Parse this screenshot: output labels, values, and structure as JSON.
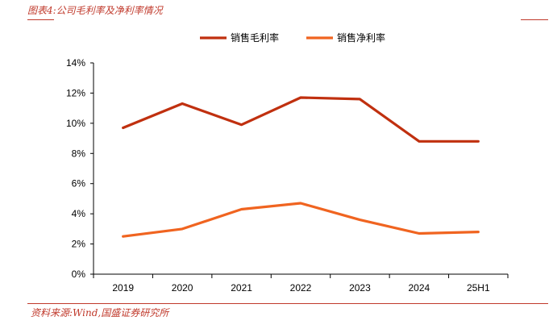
{
  "header": {
    "title": "图表4:公司毛利率及净利率情况"
  },
  "footer": {
    "source": "资料来源:Wind,国盛证券研究所"
  },
  "chart_data": {
    "type": "line",
    "title": "",
    "xlabel": "",
    "ylabel": "",
    "categories": [
      "2019",
      "2020",
      "2021",
      "2022",
      "2023",
      "2024",
      "25H1"
    ],
    "y_ticks": [
      "0%",
      "2%",
      "4%",
      "6%",
      "8%",
      "10%",
      "12%",
      "14%"
    ],
    "ylim": [
      0,
      14
    ],
    "y_unit": "%",
    "grid": false,
    "legend_position": "top-center",
    "series": [
      {
        "name": "销售毛利率",
        "color": "#c0300f",
        "values": [
          9.7,
          11.3,
          9.9,
          11.7,
          11.6,
          8.8,
          8.8
        ]
      },
      {
        "name": "销售净利率",
        "color": "#f06420",
        "values": [
          2.5,
          3.0,
          4.3,
          4.7,
          3.6,
          2.7,
          2.8
        ]
      }
    ]
  }
}
